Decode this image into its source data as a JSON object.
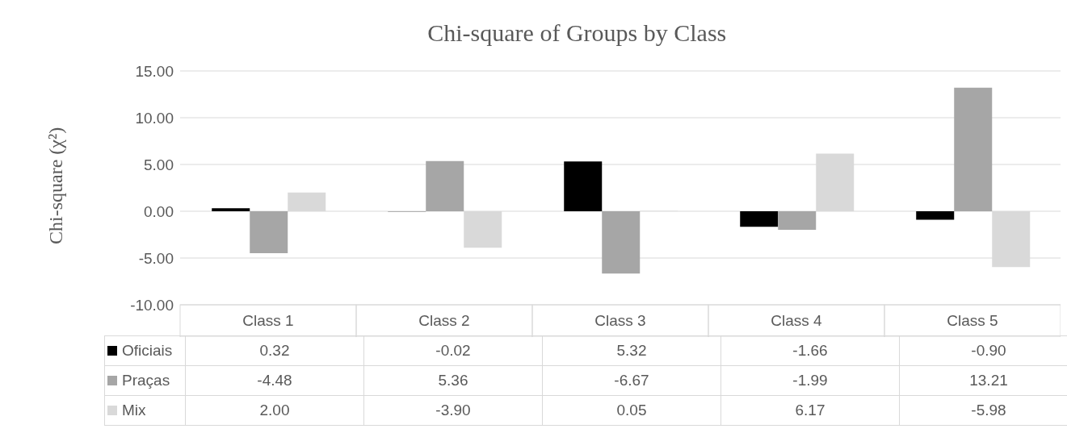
{
  "chart_data": {
    "type": "bar",
    "title": "Chi-square of Groups by Class",
    "ylabel": "Chi-square (χ²)",
    "categories": [
      "Class 1",
      "Class 2",
      "Class 3",
      "Class 4",
      "Class 5"
    ],
    "series": [
      {
        "name": "Oficiais",
        "color": "#000000",
        "values": [
          0.32,
          -0.02,
          5.32,
          -1.66,
          -0.9
        ],
        "value_labels": [
          "0.32",
          "-0.02",
          "5.32",
          "-1.66",
          "-0.90"
        ]
      },
      {
        "name": "Praças",
        "color": "#a6a6a6",
        "values": [
          -4.48,
          5.36,
          -6.67,
          -1.99,
          13.21
        ],
        "value_labels": [
          "-4.48",
          "5.36",
          "-6.67",
          "-1.99",
          "13.21"
        ]
      },
      {
        "name": "Mix",
        "color": "#d9d9d9",
        "values": [
          2.0,
          -3.9,
          0.05,
          6.17,
          -5.98
        ],
        "value_labels": [
          "2.00",
          "-3.90",
          "0.05",
          "6.17",
          "-5.98"
        ]
      }
    ],
    "ylim": [
      -10,
      15
    ],
    "yticks": [
      {
        "value": -10,
        "label": "-10.00"
      },
      {
        "value": -5,
        "label": "-5.00"
      },
      {
        "value": 0,
        "label": "0.00"
      },
      {
        "value": 5,
        "label": "5.00"
      },
      {
        "value": 10,
        "label": "10.00"
      },
      {
        "value": 15,
        "label": "15.00"
      }
    ],
    "grid": "y",
    "legend": "bottom left"
  }
}
